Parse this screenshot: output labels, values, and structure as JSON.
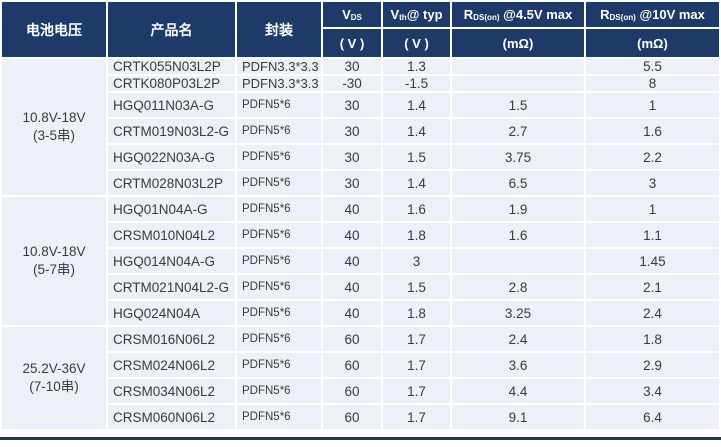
{
  "chart_data": {
    "type": "table",
    "columns": [
      {
        "label": "电池电压",
        "unit": ""
      },
      {
        "label": "产品名",
        "unit": ""
      },
      {
        "label": "封装",
        "unit": ""
      },
      {
        "label": "VDS (V)",
        "base": "V",
        "sub": "DS",
        "suffix": "",
        "unit": "( V )"
      },
      {
        "label": "Vth@ typ (V)",
        "base": "V",
        "sub": "th",
        "suffix": "@ typ",
        "unit": "( V )"
      },
      {
        "label": "RDS(on) @4.5V max (mΩ)",
        "base": "R",
        "sub": "DS(on)",
        "suffix": " @4.5V max",
        "unit": "(mΩ)"
      },
      {
        "label": "RDS(on) @10V max (mΩ)",
        "base": "R",
        "sub": "DS(on)",
        "suffix": " @10V max",
        "unit": "(mΩ)"
      }
    ],
    "groups": [
      {
        "voltage": "10.8V-18V",
        "cells": "(3-5串)",
        "rows": [
          {
            "product": "CRTK055N03L2P",
            "package": "PDFN3.3*3.3",
            "vds": "30",
            "vth_typ": "1.3",
            "rds_4v5": "",
            "rds_10v": "5.5"
          },
          {
            "product": "CRTK080P03L2P",
            "package": "PDFN3.3*3.3",
            "vds": "-30",
            "vth_typ": "-1.5",
            "rds_4v5": "",
            "rds_10v": "8"
          },
          {
            "product": "HGQ011N03A-G",
            "package": "PDFN5*6",
            "vds": "30",
            "vth_typ": "1.4",
            "rds_4v5": "1.5",
            "rds_10v": "1"
          },
          {
            "product": "CRTM019N03L2-G",
            "package": "PDFN5*6",
            "vds": "30",
            "vth_typ": "1.4",
            "rds_4v5": "2.7",
            "rds_10v": "1.6"
          },
          {
            "product": "HGQ022N03A-G",
            "package": "PDFN5*6",
            "vds": "30",
            "vth_typ": "1.5",
            "rds_4v5": "3.75",
            "rds_10v": "2.2"
          },
          {
            "product": "CRTM028N03L2P",
            "package": "PDFN5*6",
            "vds": "30",
            "vth_typ": "1.4",
            "rds_4v5": "6.5",
            "rds_10v": "3"
          }
        ]
      },
      {
        "voltage": "10.8V-18V",
        "cells": "(5-7串)",
        "rows": [
          {
            "product": "HGQ01N04A-G",
            "package": "PDFN5*6",
            "vds": "40",
            "vth_typ": "1.6",
            "rds_4v5": "1.9",
            "rds_10v": "1"
          },
          {
            "product": "CRSM010N04L2",
            "package": "PDFN5*6",
            "vds": "40",
            "vth_typ": "1.8",
            "rds_4v5": "1.6",
            "rds_10v": "1.1"
          },
          {
            "product": "HGQ014N04A-G",
            "package": "PDFN5*6",
            "vds": "40",
            "vth_typ": "3",
            "rds_4v5": "",
            "rds_10v": "1.45"
          },
          {
            "product": "CRTM021N04L2-G",
            "package": "PDFN5*6",
            "vds": "40",
            "vth_typ": "1.5",
            "rds_4v5": "2.8",
            "rds_10v": "2.1"
          },
          {
            "product": "HGQ024N04A",
            "package": "PDFN5*6",
            "vds": "40",
            "vth_typ": "1.8",
            "rds_4v5": "3.25",
            "rds_10v": "2.4"
          }
        ]
      },
      {
        "voltage": "25.2V-36V",
        "cells": "(7-10串)",
        "rows": [
          {
            "product": "CRSM016N06L2",
            "package": "PDFN5*6",
            "vds": "60",
            "vth_typ": "1.7",
            "rds_4v5": "2.4",
            "rds_10v": "1.8"
          },
          {
            "product": "CRSM024N06L2",
            "package": "PDFN5*6",
            "vds": "60",
            "vth_typ": "1.7",
            "rds_4v5": "3.6",
            "rds_10v": "2.9"
          },
          {
            "product": "CRSM034N06L2",
            "package": "PDFN5*6",
            "vds": "60",
            "vth_typ": "1.7",
            "rds_4v5": "4.4",
            "rds_10v": "3.4"
          },
          {
            "product": "CRSM060N06L2",
            "package": "PDFN5*6",
            "vds": "60",
            "vth_typ": "1.7",
            "rds_4v5": "9.1",
            "rds_10v": "6.4"
          }
        ]
      }
    ]
  },
  "colors": {
    "header_bg": "#1e3a68",
    "cell_bg": "#edf1f7",
    "header_text": "#ffffff",
    "body_text": "#3a3a3a"
  }
}
